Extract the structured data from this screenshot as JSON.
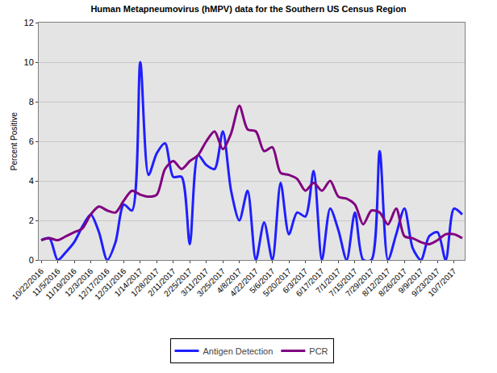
{
  "chart_data": {
    "type": "line",
    "title": "Human Metapneumovirus (hMPV) data for the Southern US Census Region",
    "y_label": "Percent Positive",
    "categories": [
      "10/22/2016",
      null,
      "11/5/2016",
      null,
      "11/19/2016",
      null,
      "12/3/2016",
      null,
      "12/17/2016",
      null,
      "12/31/2016",
      null,
      "1/14/2017",
      null,
      "1/28/2017",
      null,
      "2/11/2017",
      null,
      "2/25/2017",
      null,
      "3/11/2017",
      null,
      "3/25/2017",
      null,
      "4/8/2017",
      null,
      "4/22/2017",
      null,
      "5/6/2017",
      null,
      "5/20/2017",
      null,
      "6/3/2017",
      null,
      "6/17/2017",
      null,
      "7/1/2017",
      null,
      "7/15/2017",
      null,
      "7/29/2017",
      null,
      "8/12/2017",
      null,
      "8/26/2017",
      null,
      "9/9/2017",
      null,
      "9/23/2017",
      null,
      "10/7/2017",
      null
    ],
    "series": [
      {
        "name": "Antigen Detection",
        "color": "#1f1fff",
        "values": [
          1.0,
          1.1,
          0,
          0.4,
          0.9,
          1.7,
          2.3,
          1.4,
          0,
          0.9,
          2.8,
          2.5,
          10.0,
          4.3,
          5.4,
          5.9,
          4.2,
          4.2,
          0.8,
          5.3,
          4.8,
          4.6,
          6.5,
          3.5,
          2.0,
          3.5,
          0,
          1.9,
          0,
          3.9,
          1.3,
          2.4,
          2.2,
          4.5,
          0,
          2.6,
          1.5,
          0,
          2.4,
          0,
          0,
          5.5,
          0,
          1.3,
          2.6,
          0.6,
          0,
          1.2,
          1.4,
          0,
          2.6,
          2.3
        ]
      },
      {
        "name": "PCR",
        "color": "#800080",
        "values": [
          1.0,
          1.1,
          1.0,
          1.2,
          1.4,
          1.6,
          2.3,
          2.7,
          2.5,
          2.4,
          3.0,
          3.5,
          3.3,
          3.2,
          3.3,
          4.6,
          5.0,
          4.6,
          5.0,
          5.3,
          6.0,
          6.5,
          5.6,
          6.4,
          7.8,
          6.6,
          6.5,
          5.5,
          5.7,
          4.4,
          4.3,
          4.1,
          3.5,
          3.9,
          3.5,
          4.0,
          3.2,
          3.1,
          2.8,
          1.8,
          2.5,
          2.4,
          1.8,
          2.6,
          1.2,
          1.1,
          0.9,
          0.8,
          1.0,
          1.3,
          1.3,
          1.1
        ]
      }
    ],
    "ylim": [
      0,
      12
    ],
    "yticks": [
      0,
      2,
      4,
      6,
      8,
      10,
      12
    ],
    "grid": true,
    "legend": "bottom",
    "line_style": "smooth"
  }
}
